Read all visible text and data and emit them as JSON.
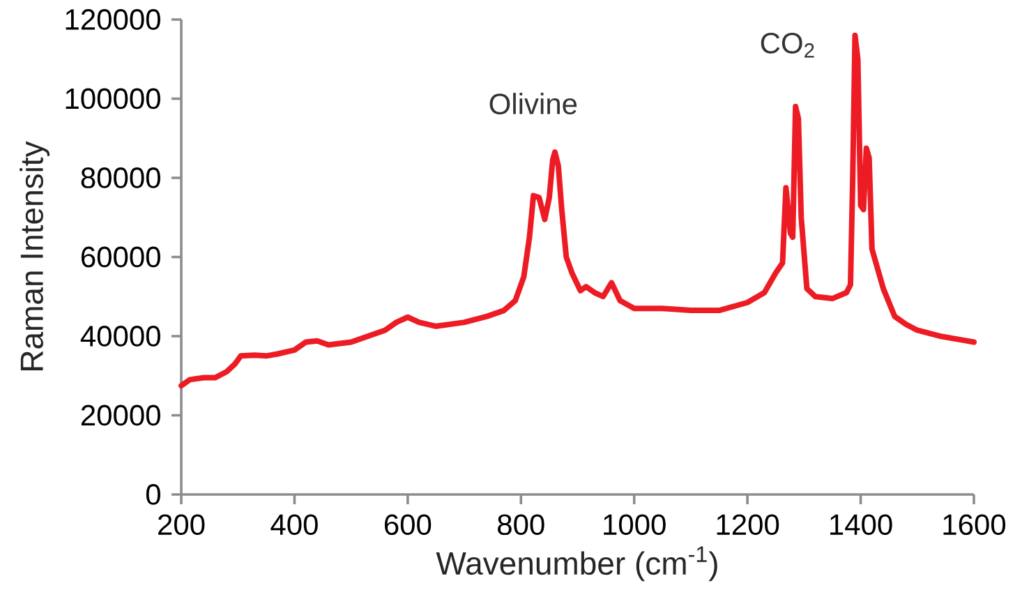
{
  "chart_data": {
    "type": "line",
    "xlabel": "Wavenumber (cm$^{-1}$)",
    "ylabel": "Raman Intensity",
    "xlim": [
      200,
      1600
    ],
    "xticks": [
      200,
      400,
      600,
      800,
      1000,
      1200,
      1400,
      1600
    ],
    "ylim": [
      0,
      120000
    ],
    "yticks": [
      0,
      20000,
      40000,
      60000,
      80000,
      100000,
      120000
    ],
    "annotations": [
      "Olivine",
      "CO$_{2}$"
    ],
    "series": [
      {
        "color": "#ed1c24",
        "line_style": "solid",
        "x": [
          200,
          215,
          240,
          260,
          280,
          295,
          305,
          330,
          350,
          370,
          400,
          420,
          440,
          460,
          500,
          530,
          560,
          580,
          600,
          620,
          650,
          700,
          740,
          770,
          790,
          805,
          815,
          822,
          832,
          842,
          850,
          856,
          860,
          866,
          872,
          880,
          890,
          905,
          915,
          930,
          945,
          960,
          975,
          1000,
          1050,
          1100,
          1150,
          1200,
          1230,
          1250,
          1262,
          1268,
          1276,
          1280,
          1285,
          1290,
          1295,
          1305,
          1320,
          1350,
          1375,
          1382,
          1386,
          1390,
          1395,
          1400,
          1405,
          1410,
          1415,
          1420,
          1440,
          1460,
          1480,
          1500,
          1540,
          1580,
          1600
        ],
        "values": [
          27500,
          29000,
          29500,
          29500,
          31000,
          33000,
          35000,
          35200,
          35000,
          35500,
          36500,
          38500,
          38800,
          37800,
          38500,
          40000,
          41500,
          43500,
          44800,
          43500,
          42500,
          43500,
          45000,
          46500,
          49000,
          55000,
          65000,
          75500,
          75000,
          69500,
          75000,
          84500,
          86500,
          83000,
          72000,
          60000,
          56000,
          51500,
          52500,
          51000,
          50000,
          53500,
          49000,
          47000,
          47000,
          46500,
          46500,
          48500,
          51000,
          56000,
          58500,
          77500,
          66000,
          65000,
          98000,
          95000,
          70000,
          52000,
          50000,
          49500,
          51000,
          53000,
          80000,
          116000,
          110000,
          73000,
          72000,
          87500,
          85000,
          62000,
          52000,
          45000,
          43000,
          41500,
          40000,
          39000,
          38500
        ]
      }
    ]
  }
}
